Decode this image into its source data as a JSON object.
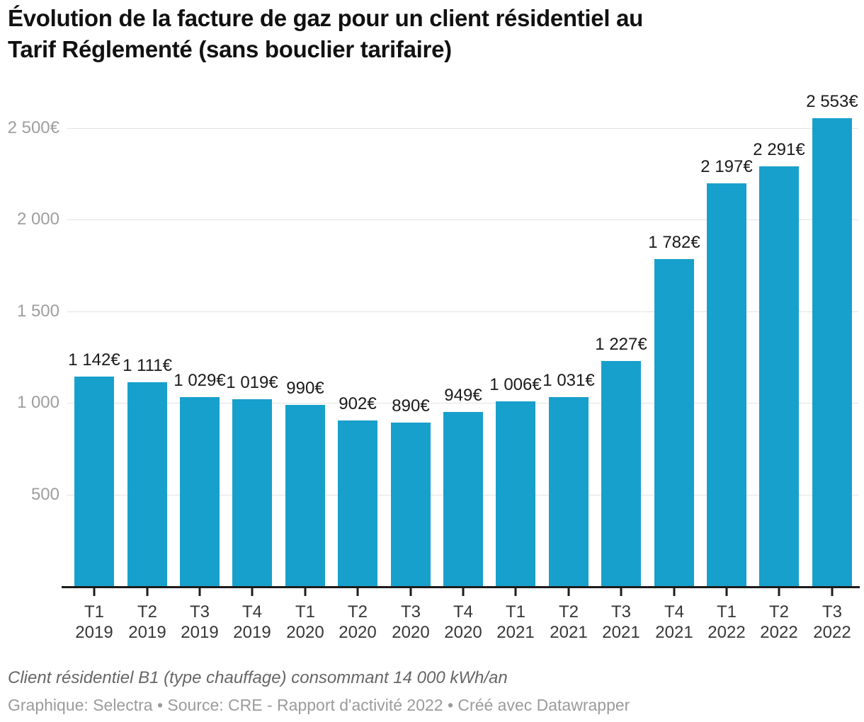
{
  "title": {
    "line1": "Évolution de la facture de gaz pour un client résidentiel au",
    "line2": "Tarif Réglementé (sans bouclier tarifaire)"
  },
  "chart_data": {
    "type": "bar",
    "title": "Évolution de la facture de gaz pour un client résidentiel au Tarif Réglementé (sans bouclier tarifaire)",
    "categories": [
      "T1 2019",
      "T2 2019",
      "T3 2019",
      "T4 2019",
      "T1 2020",
      "T2 2020",
      "T3 2020",
      "T4 2020",
      "T1 2021",
      "T2 2021",
      "T3 2021",
      "T4 2021",
      "T1 2022",
      "T2 2022",
      "T3 2022"
    ],
    "x_tick_lines": [
      [
        "T1",
        "2019"
      ],
      [
        "T2",
        "2019"
      ],
      [
        "T3",
        "2019"
      ],
      [
        "T4",
        "2019"
      ],
      [
        "T1",
        "2020"
      ],
      [
        "T2",
        "2020"
      ],
      [
        "T3",
        "2020"
      ],
      [
        "T4",
        "2020"
      ],
      [
        "T1",
        "2021"
      ],
      [
        "T2",
        "2021"
      ],
      [
        "T3",
        "2021"
      ],
      [
        "T4",
        "2021"
      ],
      [
        "T1",
        "2022"
      ],
      [
        "T2",
        "2022"
      ],
      [
        "T3",
        "2022"
      ]
    ],
    "values": [
      1142,
      1111,
      1029,
      1019,
      990,
      902,
      890,
      949,
      1006,
      1031,
      1227,
      1782,
      2197,
      2291,
      2553
    ],
    "value_labels": [
      "1 142€",
      "1 111€",
      "1 029€",
      "1 019€",
      "990€",
      "902€",
      "890€",
      "949€",
      "1 006€",
      "1 031€",
      "1 227€",
      "1 782€",
      "2 197€",
      "2 291€",
      "2 553€"
    ],
    "unit": "€",
    "xlabel": "",
    "ylabel": "",
    "ylim": [
      0,
      2600
    ],
    "grid": true,
    "legend": "none",
    "y_ticks": [
      {
        "value": 500,
        "label": "500"
      },
      {
        "value": 1000,
        "label": "1 000"
      },
      {
        "value": 1500,
        "label": "1 500"
      },
      {
        "value": 2000,
        "label": "2 000"
      },
      {
        "value": 2500,
        "label": "2 500€"
      }
    ],
    "colors": {
      "bar": "#18a0cc",
      "gridline": "#e2e2e2",
      "axis_line": "#1c1c1c",
      "y_tick_text": "#9e9e9e",
      "x_tick_text": "#373737",
      "value_label_text": "#1a1a1a"
    }
  },
  "footer": {
    "note": "Client résidentiel B1 (type chauffage) consommant 14 000 kWh/an",
    "attribution": "Graphique: Selectra • Source: CRE - Rapport d'activité 2022 • Créé avec Datawrapper"
  }
}
